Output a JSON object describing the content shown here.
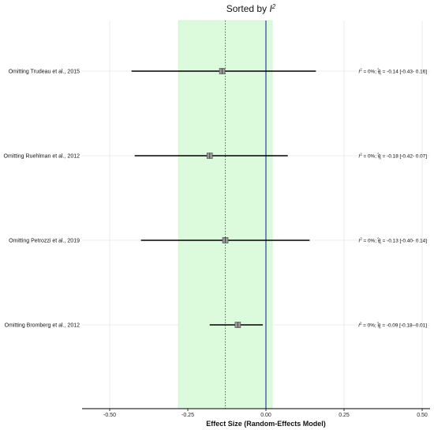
{
  "chart_data": {
    "type": "forest",
    "title": "Sorted by",
    "title_symbol": "I",
    "title_superscript": "2",
    "xlabel": "Effect Size (Random-Effects Model)",
    "xlim": [
      -0.6,
      0.5
    ],
    "xticks": [
      -0.5,
      -0.25,
      0.0,
      0.25,
      0.5
    ],
    "xtick_labels": [
      "-0.50",
      "-0.25",
      "0.00",
      "0.25",
      "0.50"
    ],
    "grid": true,
    "pooled_effect": -0.13,
    "pooled_band": [
      -0.28,
      0.02
    ],
    "reference_line": 0.0,
    "studies": [
      {
        "label": "Omitting Trudeau et al., 2015",
        "estimate": -0.14,
        "lower": -0.43,
        "upper": 0.16,
        "stat_tail": " = 0%;",
        "est_text": " = -0.14 [-0.43- 0.16]"
      },
      {
        "label": "Omitting Ruehlman et al., 2012",
        "estimate": -0.18,
        "lower": -0.42,
        "upper": 0.07,
        "stat_tail": " = 0%;",
        "est_text": " = -0.18 [-0.42- 0.07]"
      },
      {
        "label": "Omitting Petrozzi et al., 2019",
        "estimate": -0.13,
        "lower": -0.4,
        "upper": 0.14,
        "stat_tail": " = 0%;",
        "est_text": " = -0.13 [-0.40- 0.14]"
      },
      {
        "label": "Omitting Bromberg et al., 2012",
        "estimate": -0.09,
        "lower": -0.18,
        "upper": -0.01,
        "stat_tail": " = 0%;",
        "est_text": " = -0.09 [-0.18--0.01]"
      }
    ],
    "stat_symbol": "I",
    "stat_superscript": "2",
    "est_symbol": "θ",
    "est_hat": "^",
    "est_subscript": "n",
    "colors": {
      "band": "#dcfadc",
      "band_edge": "#c8eec8",
      "reference_line": "#4a5ba8",
      "pooled_line": "#3f7a4a",
      "ci_line": "#000000",
      "point_fill": "#9a9a9a",
      "grid": "#e6e6e6"
    }
  }
}
